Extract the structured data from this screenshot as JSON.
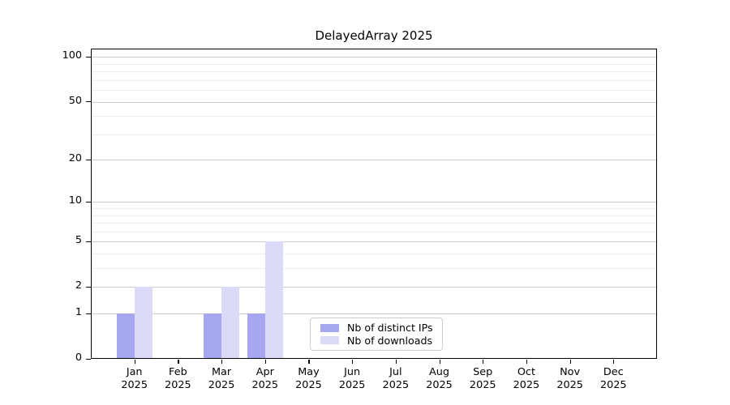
{
  "chart_data": {
    "type": "bar",
    "title": "DelayedArray 2025",
    "categories": [
      "Jan",
      "Feb",
      "Mar",
      "Apr",
      "May",
      "Jun",
      "Jul",
      "Aug",
      "Sep",
      "Oct",
      "Nov",
      "Dec"
    ],
    "category_year": "2025",
    "series": [
      {
        "name": "Nb of distinct IPs",
        "color": "#a6a6f1",
        "values": [
          1,
          0,
          1,
          1,
          0,
          0,
          0,
          0,
          0,
          0,
          0,
          0
        ]
      },
      {
        "name": "Nb of downloads",
        "color": "#dbdbf7",
        "values": [
          2,
          0,
          2,
          5,
          0,
          0,
          0,
          0,
          0,
          0,
          0,
          0
        ]
      }
    ],
    "xlabel": "",
    "ylabel": "",
    "y_axis": {
      "scale": "log1p",
      "ticks": [
        0,
        1,
        2,
        5,
        10,
        20,
        50,
        100
      ],
      "minor_gridlines": [
        3,
        4,
        6,
        7,
        8,
        9,
        30,
        40,
        60,
        70,
        80,
        90
      ],
      "ylim": [
        0,
        114
      ]
    },
    "grid": "horizontal",
    "legend": {
      "position": "lower center",
      "entries": [
        "Nb of distinct IPs",
        "Nb of downloads"
      ]
    },
    "colors": {
      "major_gridline": "#c9c9c9",
      "minor_gridline": "#ececec",
      "axis": "#000000",
      "background": "#ffffff"
    }
  }
}
